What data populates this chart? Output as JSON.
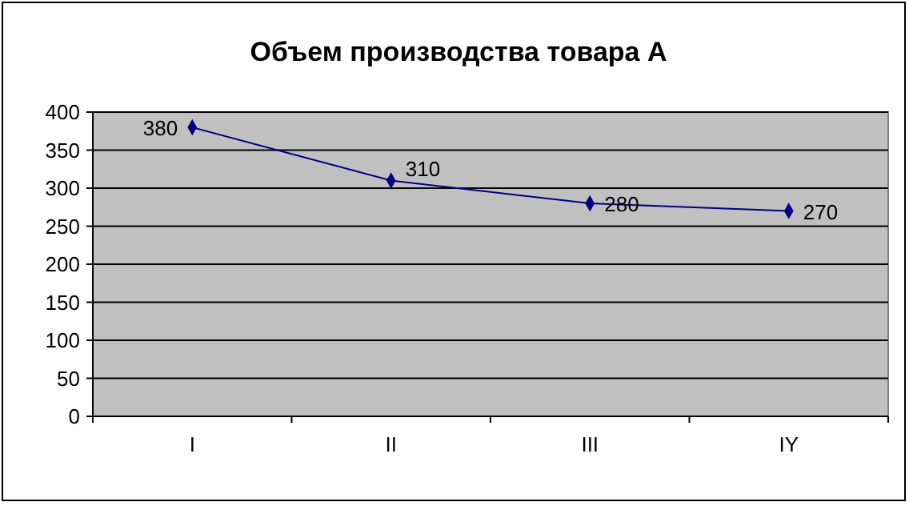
{
  "chart_data": {
    "type": "line",
    "title": "Объем производства товара А",
    "categories": [
      "I",
      "II",
      "III",
      "IY"
    ],
    "series": [
      {
        "color": "#000080",
        "values": [
          380,
          310,
          280,
          270
        ]
      }
    ],
    "ylim": [
      0,
      400
    ],
    "yticks": [
      0,
      50,
      100,
      150,
      200,
      250,
      300,
      350,
      400
    ],
    "grid": "y",
    "marker": "diamond",
    "data_labels": true
  }
}
